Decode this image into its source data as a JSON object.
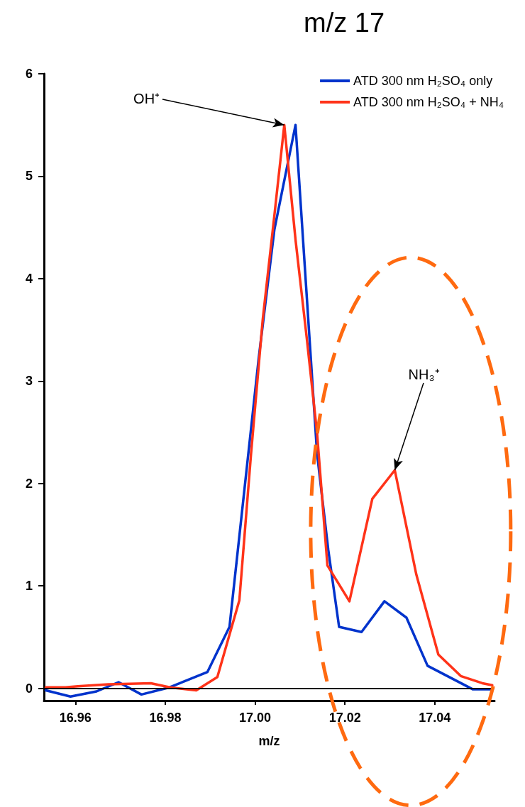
{
  "chart_data": {
    "type": "line",
    "title": "m/z 17",
    "xlabel": "m/z",
    "xlim": [
      16.953,
      17.0533
    ],
    "xticks": [
      16.96,
      16.98,
      {
        "value": 17.0,
        "label": "17.00"
      },
      17.02,
      17.04
    ],
    "ylim": [
      -0.12,
      6
    ],
    "yticks": [
      0,
      1,
      2,
      3,
      4,
      5,
      6
    ],
    "grid": false,
    "legend": "top right",
    "marker": "none",
    "line_style": "solid",
    "ref_lines": [
      {
        "axis": "y",
        "value": 0,
        "color": "#000000"
      }
    ],
    "annotations": [
      {
        "text": "OH⁺",
        "x": 17.0065,
        "y": 5.5
      },
      {
        "text": "NH₃⁺",
        "x": 17.0311,
        "y": 2.13
      }
    ],
    "series": [
      {
        "name": "ATD 300 nm H₂SO₄ only",
        "color": "#0033cc",
        "x": [
          16.9534,
          16.9589,
          16.9647,
          16.9696,
          16.9747,
          16.981,
          16.9894,
          16.9943,
          17.0008,
          17.0043,
          17.009,
          17.0138,
          17.0163,
          17.0187,
          17.0237,
          17.0288,
          17.0337,
          17.0384,
          17.0485,
          17.0529
        ],
        "values": [
          -0.02,
          -0.08,
          -0.03,
          0.06,
          -0.06,
          0.01,
          0.16,
          0.6,
          3.22,
          4.48,
          5.5,
          2.29,
          1.35,
          0.6,
          0.55,
          0.85,
          0.69,
          0.22,
          -0.01,
          -0.01
        ]
      },
      {
        "name": "ATD 300 nm H₂SO₄ + NH₄",
        "color": "#ff3319",
        "x": [
          16.9534,
          16.9578,
          16.9605,
          16.9673,
          16.9768,
          16.981,
          16.9869,
          16.9916,
          16.9965,
          16.9991,
          17.0017,
          17.0043,
          17.0065,
          17.009,
          17.0115,
          17.0138,
          17.0161,
          17.021,
          17.0261,
          17.0311,
          17.0359,
          17.0408,
          17.0458,
          17.0506,
          17.0528
        ],
        "values": [
          0.01,
          0.01,
          0.02,
          0.04,
          0.05,
          0.01,
          -0.02,
          0.11,
          0.86,
          2.29,
          3.6,
          4.62,
          5.5,
          4.38,
          3.42,
          2.49,
          1.2,
          0.85,
          1.85,
          2.13,
          1.11,
          0.33,
          0.12,
          0.05,
          0.03
        ]
      }
    ]
  }
}
